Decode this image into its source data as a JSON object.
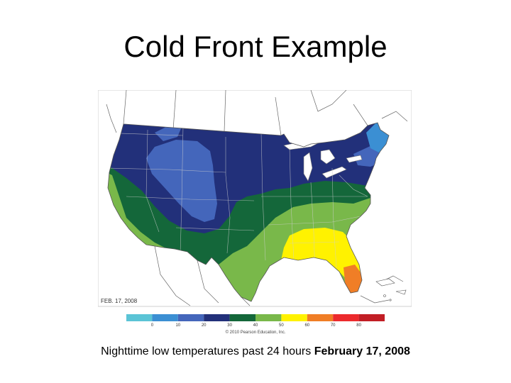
{
  "slide": {
    "title": "Cold Front Example",
    "caption_regular": "Nighttime low temperatures past 24 hours ",
    "caption_bold": "February 17, 2008"
  },
  "map": {
    "date_label": "FEB. 17, 2008",
    "copyright": "© 2010 Pearson Education, Inc.",
    "legend": [
      {
        "color": "#5bc4d6",
        "label": "0"
      },
      {
        "color": "#3b8fd3",
        "label": "10"
      },
      {
        "color": "#4466bb",
        "label": "20"
      },
      {
        "color": "#22307a",
        "label": "30"
      },
      {
        "color": "#14673a",
        "label": "40"
      },
      {
        "color": "#79b84a",
        "label": "50"
      },
      {
        "color": "#fff200",
        "label": "60"
      },
      {
        "color": "#f07e26",
        "label": "70"
      },
      {
        "color": "#ec2a2d",
        "label": "80"
      },
      {
        "color": "#c21e25",
        "label": ""
      }
    ],
    "zones": {
      "navy": "#22307a",
      "mid_blue": "#4466bb",
      "light_blue": "#3b8fd3",
      "dark_green": "#14673a",
      "light_green": "#79b84a",
      "yellow": "#fff200",
      "orange": "#f07e26",
      "lakes": "#ffffff"
    }
  }
}
